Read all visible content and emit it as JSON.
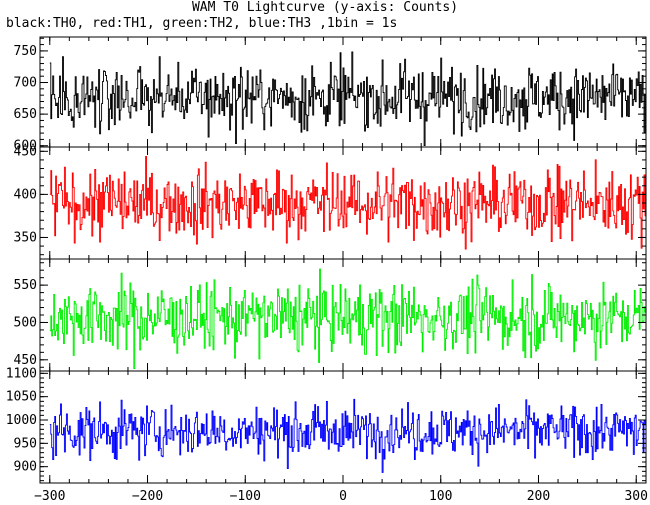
{
  "title": "WAM T0 Lightcurve (y-axis: Counts)",
  "subtitle": "black:TH0, red:TH1, green:TH2, blue:TH3 ,1bin = 1s",
  "chart_data": {
    "type": "line",
    "title": "WAM T0 Lightcurve (y-axis: Counts)",
    "subtitle": "black:TH0, red:TH1, green:TH2, blue:TH3 ,1bin = 1s",
    "ylabel": "Counts",
    "bin_seconds": 1,
    "x_range": [
      -310,
      310
    ],
    "x_ticks": [
      -300,
      -200,
      -100,
      0,
      100,
      200,
      300
    ],
    "shared_x_axis": true,
    "panels": [
      {
        "channel": "TH0",
        "color": "#000000",
        "ylim": [
          598,
          772
        ],
        "yticks": [
          600,
          650,
          700,
          750
        ],
        "mean": 677,
        "noise_sd": 26,
        "x_start": -300,
        "x_end": 310,
        "x_step": 1
      },
      {
        "channel": "TH1",
        "color": "#ff0000",
        "ylim": [
          325,
          455
        ],
        "yticks": [
          350,
          400,
          450
        ],
        "mean": 390,
        "noise_sd": 20,
        "x_start": -300,
        "x_end": 310,
        "x_step": 1
      },
      {
        "channel": "TH2",
        "color": "#00ee00",
        "ylim": [
          435,
          585
        ],
        "yticks": [
          450,
          500,
          550
        ],
        "mean": 507,
        "noise_sd": 23,
        "x_start": -300,
        "x_end": 310,
        "x_step": 1
      },
      {
        "channel": "TH3",
        "color": "#0000ff",
        "ylim": [
          865,
          1105
        ],
        "yticks": [
          900,
          950,
          1000,
          1050,
          1100
        ],
        "mean": 977,
        "noise_sd": 28,
        "x_start": -300,
        "x_end": 310,
        "x_step": 1
      }
    ],
    "grid": false,
    "legend": "none"
  }
}
